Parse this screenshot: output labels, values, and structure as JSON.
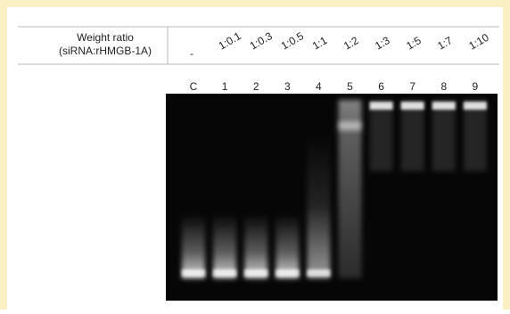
{
  "header": {
    "label_line1": "Weight ratio",
    "label_line2": "(siRNA:rHMGB-1A)"
  },
  "ratios": [
    "-",
    "1:0.1",
    "1:0.3",
    "1:0.5",
    "1:1",
    "1:2",
    "1:3",
    "1:5",
    "1:7",
    "1:10"
  ],
  "lanes": [
    "C",
    "1",
    "2",
    "3",
    "4",
    "5",
    "6",
    "7",
    "8",
    "9"
  ]
}
